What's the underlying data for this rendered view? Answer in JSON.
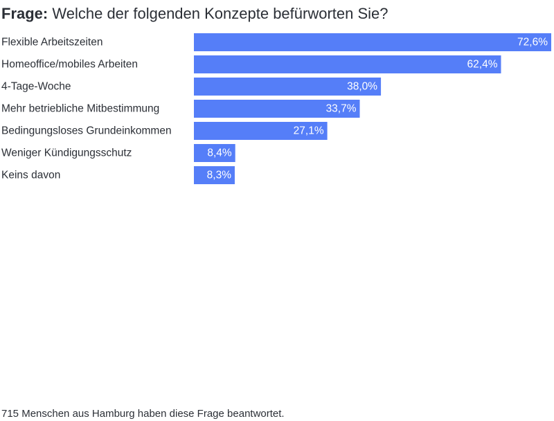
{
  "title": {
    "prefix": "Frage:",
    "text": "Welche der folgenden Konzepte befürworten Sie?"
  },
  "footnote": "715 Menschen aus Hamburg haben diese Frage beantwortet.",
  "colors": {
    "bar": "#557ef8",
    "text": "#2b2f36",
    "value_text": "#ffffff"
  },
  "chart_data": {
    "type": "bar",
    "orientation": "horizontal",
    "title": "Frage: Welche der folgenden Konzepte befürworten Sie?",
    "categories": [
      "Flexible Arbeitszeiten",
      "Homeoffice/mobiles Arbeiten",
      "4-Tage-Woche",
      "Mehr betriebliche Mitbestimmung",
      "Bedingungsloses Grundeinkommen",
      "Weniger Kündigungsschutz",
      "Keins davon"
    ],
    "values": [
      72.6,
      62.4,
      38.0,
      33.7,
      27.1,
      8.4,
      8.3
    ],
    "value_labels": [
      "72,6%",
      "62,4%",
      "38,0%",
      "33,7%",
      "27,1%",
      "8,4%",
      "8,3%"
    ],
    "unit": "%",
    "xlim": [
      0,
      72.6
    ],
    "grid": false,
    "legend": "none"
  }
}
